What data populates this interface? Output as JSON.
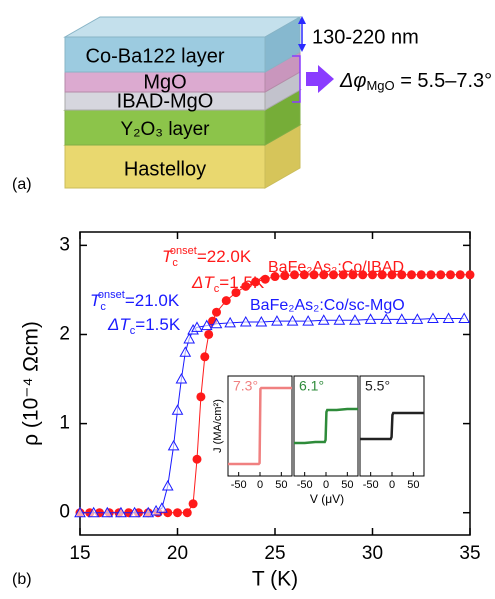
{
  "figure_a": {
    "label": "(a)",
    "layers": [
      "Co-Ba122 layer",
      "MgO",
      "IBAD-MgO",
      "Y₂O₃ layer",
      "Hastelloy"
    ],
    "thickness": "130-220 nm",
    "misorientation": [
      "Δφ",
      "MgO",
      " = 5.5–7.3°"
    ]
  },
  "chart_data": [
    {
      "type": "line",
      "panel_label": "(b)",
      "xlabel": "T (K)",
      "ylabel": "ρ (10⁻⁴ Ωcm)",
      "xlim": [
        15,
        35
      ],
      "xticks": [
        15,
        20,
        25,
        30,
        35
      ],
      "ylim": [
        -0.25,
        3.15
      ],
      "yticks": [
        0,
        1,
        2,
        3
      ],
      "series": [
        {
          "name": "BaFe₂As₂:Co/IBAD",
          "color": "#ff1a1a",
          "marker": "circle",
          "x": [
            15,
            15.5,
            16,
            16.5,
            17,
            17.5,
            18,
            18.5,
            19,
            19.5,
            20,
            20.5,
            20.8,
            21.0,
            21.2,
            21.4,
            21.6,
            21.8,
            22.0,
            22.5,
            23,
            23.5,
            24,
            24.5,
            25,
            25.5,
            26,
            26.5,
            27,
            27.5,
            28,
            28.5,
            29,
            29.5,
            30,
            30.5,
            31,
            31.5,
            32,
            32.5,
            33,
            33.5,
            34,
            34.5,
            35
          ],
          "values": [
            0,
            0,
            0,
            0,
            0,
            0,
            0,
            0,
            0,
            0,
            0,
            0,
            0.1,
            0.6,
            1.3,
            1.75,
            2.0,
            2.15,
            2.25,
            2.38,
            2.47,
            2.54,
            2.59,
            2.62,
            2.65,
            2.66,
            2.67,
            2.67,
            2.67,
            2.67,
            2.67,
            2.67,
            2.67,
            2.67,
            2.67,
            2.67,
            2.67,
            2.67,
            2.67,
            2.67,
            2.67,
            2.67,
            2.67,
            2.67,
            2.67
          ]
        },
        {
          "name": "BaFe₂As₂:Co/sc-MgO",
          "color": "#1a1aff",
          "marker": "triangle",
          "x": [
            15,
            15.7,
            16.4,
            17.1,
            17.8,
            18.5,
            18.9,
            19.2,
            19.5,
            19.8,
            20.0,
            20.2,
            20.4,
            20.6,
            20.8,
            21.0,
            21.5,
            22,
            22.7,
            23.5,
            24.3,
            25.1,
            25.9,
            26.7,
            27.5,
            28.3,
            29.1,
            29.9,
            30.7,
            31.5,
            32.3,
            33.1,
            33.9,
            34.7
          ],
          "values": [
            0,
            0,
            0,
            0,
            0,
            0,
            0.02,
            0.05,
            0.3,
            0.75,
            1.15,
            1.5,
            1.8,
            1.95,
            2.05,
            2.08,
            2.1,
            2.12,
            2.13,
            2.14,
            2.14,
            2.15,
            2.15,
            2.15,
            2.16,
            2.16,
            2.16,
            2.17,
            2.17,
            2.17,
            2.17,
            2.18,
            2.18,
            2.18
          ]
        }
      ],
      "annotations": [
        {
          "parts": [
            "T",
            "c",
            "onset",
            "=22.0K"
          ],
          "color": "#ff1a1a"
        },
        {
          "parts": [
            "ΔT",
            "c",
            "=1.5K"
          ],
          "color": "#ff1a1a"
        },
        {
          "parts": [
            "T",
            "c",
            "onset",
            "=21.0K"
          ],
          "color": "#1a1aff"
        },
        {
          "parts": [
            "ΔT",
            "c",
            "=1.5K"
          ],
          "color": "#1a1aff"
        }
      ]
    },
    {
      "type": "step-panels",
      "xlabel": "V (μV)",
      "ylabel": "J (MA/cm²)",
      "xlim": [
        -75,
        75
      ],
      "xticks": [
        -50,
        0,
        50
      ],
      "ylim": [
        -5,
        5
      ],
      "series": [
        {
          "name": "7.3°",
          "color": "#f08080",
          "x": [
            -75,
            -50,
            -25,
            -3,
            -1,
            1,
            3,
            25,
            50,
            75
          ],
          "values": [
            -3.8,
            -3.8,
            -3.8,
            -3.8,
            -3.7,
            3.7,
            3.8,
            3.8,
            3.8,
            3.8
          ]
        },
        {
          "name": "6.1°",
          "color": "#2e8b3a",
          "x": [
            -75,
            -50,
            -25,
            -3,
            -1,
            1,
            3,
            25,
            50,
            75
          ],
          "values": [
            -1.7,
            -1.7,
            -1.6,
            -1.6,
            -1.4,
            1.4,
            1.6,
            1.6,
            1.7,
            1.7
          ]
        },
        {
          "name": "5.5°",
          "color": "#222222",
          "x": [
            -75,
            -50,
            -25,
            -3,
            -1,
            1,
            3,
            25,
            50,
            75
          ],
          "values": [
            -1.3,
            -1.3,
            -1.3,
            -1.3,
            -1.1,
            1.1,
            1.3,
            1.3,
            1.3,
            1.3
          ]
        }
      ]
    }
  ]
}
